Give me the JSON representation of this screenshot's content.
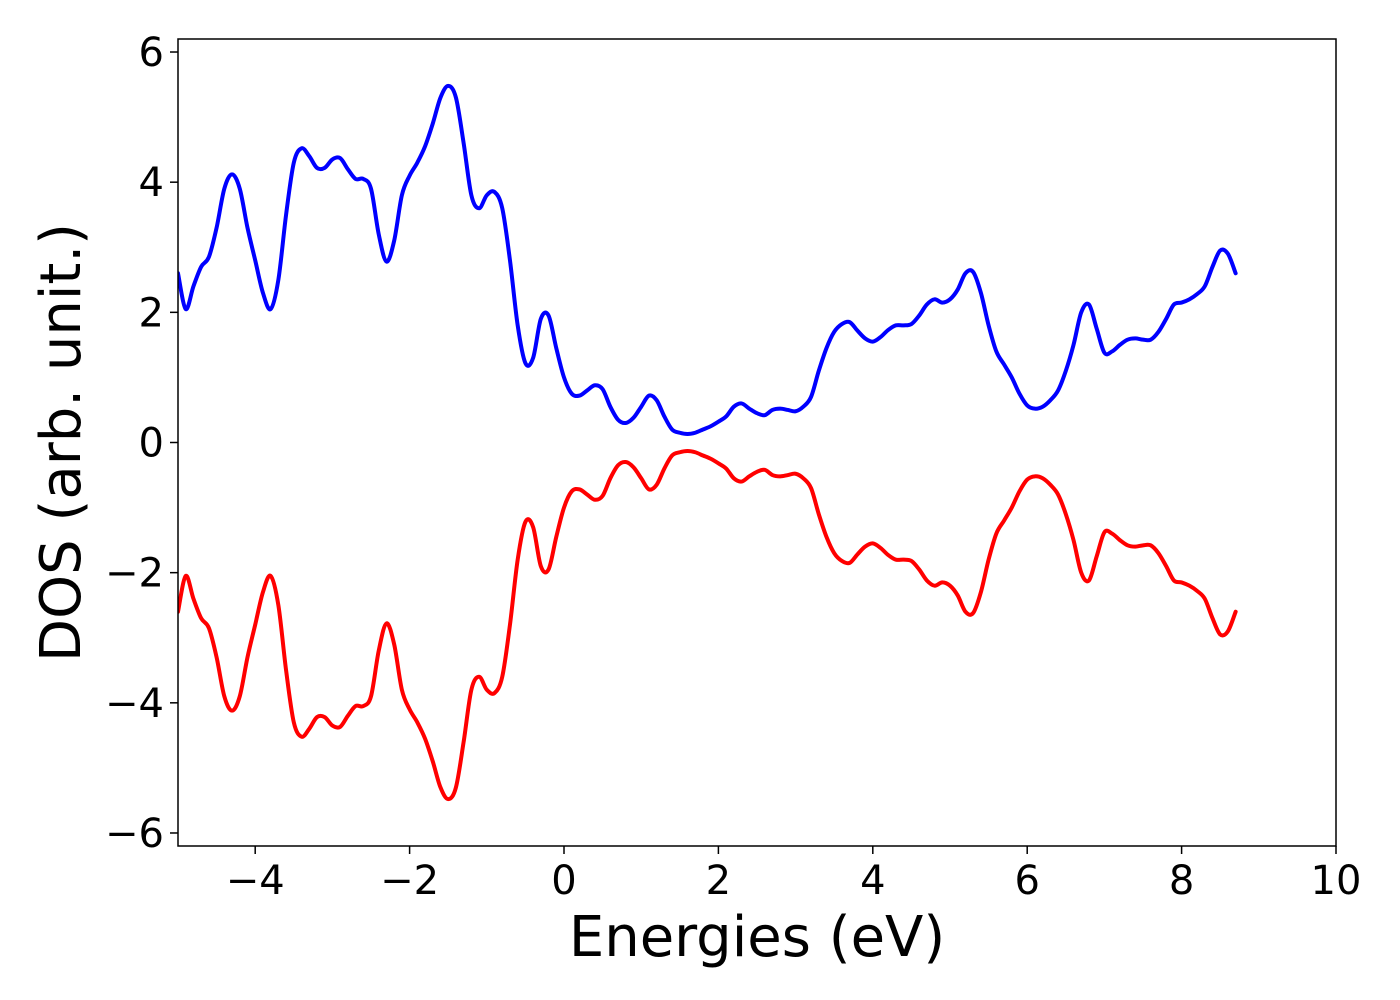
{
  "chart_data": {
    "type": "line",
    "title": "",
    "xlabel": "Energies (eV)",
    "ylabel": "DOS (arb. unit.)",
    "xlim": [
      -5,
      10
    ],
    "ylim": [
      -6.2,
      6.2
    ],
    "grid": false,
    "legend": "none",
    "x_ticks": [
      -4,
      -2,
      0,
      2,
      4,
      6,
      8,
      10
    ],
    "x_tick_labels": [
      "−4",
      "−2",
      "0",
      "2",
      "4",
      "6",
      "8",
      "10"
    ],
    "y_ticks": [
      -6,
      -4,
      -2,
      0,
      2,
      4,
      6
    ],
    "y_tick_labels": [
      "−6",
      "−4",
      "−2",
      "0",
      "2",
      "4",
      "6"
    ],
    "series": [
      {
        "color": "#0000ff",
        "points": [
          [
            -5.0,
            2.6
          ],
          [
            -4.9,
            2.05
          ],
          [
            -4.8,
            2.4
          ],
          [
            -4.7,
            2.7
          ],
          [
            -4.6,
            2.85
          ],
          [
            -4.5,
            3.3
          ],
          [
            -4.4,
            3.9
          ],
          [
            -4.3,
            4.12
          ],
          [
            -4.2,
            3.9
          ],
          [
            -4.1,
            3.3
          ],
          [
            -4.0,
            2.8
          ],
          [
            -3.9,
            2.3
          ],
          [
            -3.8,
            2.05
          ],
          [
            -3.7,
            2.5
          ],
          [
            -3.6,
            3.5
          ],
          [
            -3.5,
            4.3
          ],
          [
            -3.4,
            4.52
          ],
          [
            -3.3,
            4.4
          ],
          [
            -3.2,
            4.22
          ],
          [
            -3.1,
            4.22
          ],
          [
            -3.0,
            4.35
          ],
          [
            -2.9,
            4.37
          ],
          [
            -2.8,
            4.2
          ],
          [
            -2.7,
            4.05
          ],
          [
            -2.6,
            4.05
          ],
          [
            -2.5,
            3.9
          ],
          [
            -2.4,
            3.2
          ],
          [
            -2.3,
            2.78
          ],
          [
            -2.2,
            3.1
          ],
          [
            -2.1,
            3.8
          ],
          [
            -2.0,
            4.1
          ],
          [
            -1.9,
            4.3
          ],
          [
            -1.8,
            4.55
          ],
          [
            -1.7,
            4.9
          ],
          [
            -1.6,
            5.3
          ],
          [
            -1.5,
            5.48
          ],
          [
            -1.4,
            5.3
          ],
          [
            -1.3,
            4.6
          ],
          [
            -1.2,
            3.8
          ],
          [
            -1.1,
            3.6
          ],
          [
            -1.0,
            3.8
          ],
          [
            -0.9,
            3.85
          ],
          [
            -0.8,
            3.6
          ],
          [
            -0.7,
            2.8
          ],
          [
            -0.6,
            1.8
          ],
          [
            -0.5,
            1.22
          ],
          [
            -0.4,
            1.3
          ],
          [
            -0.3,
            1.9
          ],
          [
            -0.2,
            1.95
          ],
          [
            -0.1,
            1.45
          ],
          [
            0.0,
            1.0
          ],
          [
            0.1,
            0.75
          ],
          [
            0.2,
            0.72
          ],
          [
            0.3,
            0.8
          ],
          [
            0.4,
            0.88
          ],
          [
            0.5,
            0.82
          ],
          [
            0.6,
            0.55
          ],
          [
            0.7,
            0.35
          ],
          [
            0.8,
            0.3
          ],
          [
            0.9,
            0.38
          ],
          [
            1.0,
            0.55
          ],
          [
            1.1,
            0.72
          ],
          [
            1.2,
            0.65
          ],
          [
            1.3,
            0.4
          ],
          [
            1.4,
            0.2
          ],
          [
            1.5,
            0.15
          ],
          [
            1.6,
            0.13
          ],
          [
            1.7,
            0.15
          ],
          [
            1.8,
            0.2
          ],
          [
            1.9,
            0.25
          ],
          [
            2.0,
            0.32
          ],
          [
            2.1,
            0.4
          ],
          [
            2.2,
            0.55
          ],
          [
            2.3,
            0.6
          ],
          [
            2.4,
            0.52
          ],
          [
            2.5,
            0.45
          ],
          [
            2.6,
            0.42
          ],
          [
            2.7,
            0.5
          ],
          [
            2.8,
            0.52
          ],
          [
            2.9,
            0.5
          ],
          [
            3.0,
            0.48
          ],
          [
            3.1,
            0.55
          ],
          [
            3.2,
            0.7
          ],
          [
            3.3,
            1.1
          ],
          [
            3.4,
            1.45
          ],
          [
            3.5,
            1.7
          ],
          [
            3.6,
            1.82
          ],
          [
            3.7,
            1.85
          ],
          [
            3.8,
            1.72
          ],
          [
            3.9,
            1.6
          ],
          [
            4.0,
            1.55
          ],
          [
            4.1,
            1.62
          ],
          [
            4.2,
            1.73
          ],
          [
            4.3,
            1.8
          ],
          [
            4.4,
            1.8
          ],
          [
            4.5,
            1.82
          ],
          [
            4.6,
            1.95
          ],
          [
            4.7,
            2.12
          ],
          [
            4.8,
            2.2
          ],
          [
            4.9,
            2.15
          ],
          [
            5.0,
            2.2
          ],
          [
            5.1,
            2.35
          ],
          [
            5.2,
            2.6
          ],
          [
            5.3,
            2.62
          ],
          [
            5.4,
            2.3
          ],
          [
            5.5,
            1.8
          ],
          [
            5.6,
            1.4
          ],
          [
            5.7,
            1.2
          ],
          [
            5.8,
            1.0
          ],
          [
            5.9,
            0.75
          ],
          [
            6.0,
            0.57
          ],
          [
            6.1,
            0.52
          ],
          [
            6.2,
            0.55
          ],
          [
            6.3,
            0.65
          ],
          [
            6.4,
            0.8
          ],
          [
            6.5,
            1.1
          ],
          [
            6.6,
            1.5
          ],
          [
            6.7,
            2.0
          ],
          [
            6.8,
            2.12
          ],
          [
            6.9,
            1.75
          ],
          [
            7.0,
            1.38
          ],
          [
            7.1,
            1.4
          ],
          [
            7.2,
            1.5
          ],
          [
            7.3,
            1.58
          ],
          [
            7.4,
            1.6
          ],
          [
            7.5,
            1.58
          ],
          [
            7.6,
            1.58
          ],
          [
            7.7,
            1.7
          ],
          [
            7.8,
            1.9
          ],
          [
            7.9,
            2.12
          ],
          [
            8.0,
            2.15
          ],
          [
            8.1,
            2.2
          ],
          [
            8.2,
            2.28
          ],
          [
            8.3,
            2.4
          ],
          [
            8.4,
            2.7
          ],
          [
            8.5,
            2.95
          ],
          [
            8.6,
            2.9
          ],
          [
            8.7,
            2.6
          ]
        ]
      },
      {
        "color": "#ff0000",
        "points": [
          [
            -5.0,
            -2.6
          ],
          [
            -4.9,
            -2.05
          ],
          [
            -4.8,
            -2.4
          ],
          [
            -4.7,
            -2.7
          ],
          [
            -4.6,
            -2.85
          ],
          [
            -4.5,
            -3.3
          ],
          [
            -4.4,
            -3.9
          ],
          [
            -4.3,
            -4.12
          ],
          [
            -4.2,
            -3.9
          ],
          [
            -4.1,
            -3.3
          ],
          [
            -4.0,
            -2.8
          ],
          [
            -3.9,
            -2.3
          ],
          [
            -3.8,
            -2.05
          ],
          [
            -3.7,
            -2.5
          ],
          [
            -3.6,
            -3.5
          ],
          [
            -3.5,
            -4.3
          ],
          [
            -3.4,
            -4.52
          ],
          [
            -3.3,
            -4.4
          ],
          [
            -3.2,
            -4.22
          ],
          [
            -3.1,
            -4.22
          ],
          [
            -3.0,
            -4.35
          ],
          [
            -2.9,
            -4.37
          ],
          [
            -2.8,
            -4.2
          ],
          [
            -2.7,
            -4.05
          ],
          [
            -2.6,
            -4.05
          ],
          [
            -2.5,
            -3.9
          ],
          [
            -2.4,
            -3.2
          ],
          [
            -2.3,
            -2.78
          ],
          [
            -2.2,
            -3.1
          ],
          [
            -2.1,
            -3.8
          ],
          [
            -2.0,
            -4.1
          ],
          [
            -1.9,
            -4.3
          ],
          [
            -1.8,
            -4.55
          ],
          [
            -1.7,
            -4.9
          ],
          [
            -1.6,
            -5.3
          ],
          [
            -1.5,
            -5.48
          ],
          [
            -1.4,
            -5.3
          ],
          [
            -1.3,
            -4.6
          ],
          [
            -1.2,
            -3.8
          ],
          [
            -1.1,
            -3.6
          ],
          [
            -1.0,
            -3.8
          ],
          [
            -0.9,
            -3.85
          ],
          [
            -0.8,
            -3.6
          ],
          [
            -0.7,
            -2.8
          ],
          [
            -0.6,
            -1.8
          ],
          [
            -0.5,
            -1.22
          ],
          [
            -0.4,
            -1.3
          ],
          [
            -0.3,
            -1.9
          ],
          [
            -0.2,
            -1.95
          ],
          [
            -0.1,
            -1.45
          ],
          [
            0.0,
            -1.0
          ],
          [
            0.1,
            -0.75
          ],
          [
            0.2,
            -0.72
          ],
          [
            0.3,
            -0.8
          ],
          [
            0.4,
            -0.88
          ],
          [
            0.5,
            -0.82
          ],
          [
            0.6,
            -0.55
          ],
          [
            0.7,
            -0.35
          ],
          [
            0.8,
            -0.3
          ],
          [
            0.9,
            -0.38
          ],
          [
            1.0,
            -0.55
          ],
          [
            1.1,
            -0.72
          ],
          [
            1.2,
            -0.65
          ],
          [
            1.3,
            -0.4
          ],
          [
            1.4,
            -0.2
          ],
          [
            1.5,
            -0.15
          ],
          [
            1.6,
            -0.13
          ],
          [
            1.7,
            -0.15
          ],
          [
            1.8,
            -0.2
          ],
          [
            1.9,
            -0.25
          ],
          [
            2.0,
            -0.32
          ],
          [
            2.1,
            -0.4
          ],
          [
            2.2,
            -0.55
          ],
          [
            2.3,
            -0.6
          ],
          [
            2.4,
            -0.52
          ],
          [
            2.5,
            -0.45
          ],
          [
            2.6,
            -0.42
          ],
          [
            2.7,
            -0.5
          ],
          [
            2.8,
            -0.52
          ],
          [
            2.9,
            -0.5
          ],
          [
            3.0,
            -0.48
          ],
          [
            3.1,
            -0.55
          ],
          [
            3.2,
            -0.7
          ],
          [
            3.3,
            -1.1
          ],
          [
            3.4,
            -1.45
          ],
          [
            3.5,
            -1.7
          ],
          [
            3.6,
            -1.82
          ],
          [
            3.7,
            -1.85
          ],
          [
            3.8,
            -1.72
          ],
          [
            3.9,
            -1.6
          ],
          [
            4.0,
            -1.55
          ],
          [
            4.1,
            -1.62
          ],
          [
            4.2,
            -1.73
          ],
          [
            4.3,
            -1.8
          ],
          [
            4.4,
            -1.8
          ],
          [
            4.5,
            -1.82
          ],
          [
            4.6,
            -1.95
          ],
          [
            4.7,
            -2.12
          ],
          [
            4.8,
            -2.2
          ],
          [
            4.9,
            -2.15
          ],
          [
            5.0,
            -2.2
          ],
          [
            5.1,
            -2.35
          ],
          [
            5.2,
            -2.6
          ],
          [
            5.3,
            -2.62
          ],
          [
            5.4,
            -2.3
          ],
          [
            5.5,
            -1.8
          ],
          [
            5.6,
            -1.4
          ],
          [
            5.7,
            -1.2
          ],
          [
            5.8,
            -1.0
          ],
          [
            5.9,
            -0.75
          ],
          [
            6.0,
            -0.57
          ],
          [
            6.1,
            -0.52
          ],
          [
            6.2,
            -0.55
          ],
          [
            6.3,
            -0.65
          ],
          [
            6.4,
            -0.8
          ],
          [
            6.5,
            -1.1
          ],
          [
            6.6,
            -1.5
          ],
          [
            6.7,
            -2.0
          ],
          [
            6.8,
            -2.12
          ],
          [
            6.9,
            -1.75
          ],
          [
            7.0,
            -1.38
          ],
          [
            7.1,
            -1.4
          ],
          [
            7.2,
            -1.5
          ],
          [
            7.3,
            -1.58
          ],
          [
            7.4,
            -1.6
          ],
          [
            7.5,
            -1.58
          ],
          [
            7.6,
            -1.58
          ],
          [
            7.7,
            -1.7
          ],
          [
            7.8,
            -1.9
          ],
          [
            7.9,
            -2.12
          ],
          [
            8.0,
            -2.15
          ],
          [
            8.1,
            -2.2
          ],
          [
            8.2,
            -2.28
          ],
          [
            8.3,
            -2.4
          ],
          [
            8.4,
            -2.7
          ],
          [
            8.5,
            -2.95
          ],
          [
            8.6,
            -2.9
          ],
          [
            8.7,
            -2.6
          ]
        ]
      }
    ]
  }
}
